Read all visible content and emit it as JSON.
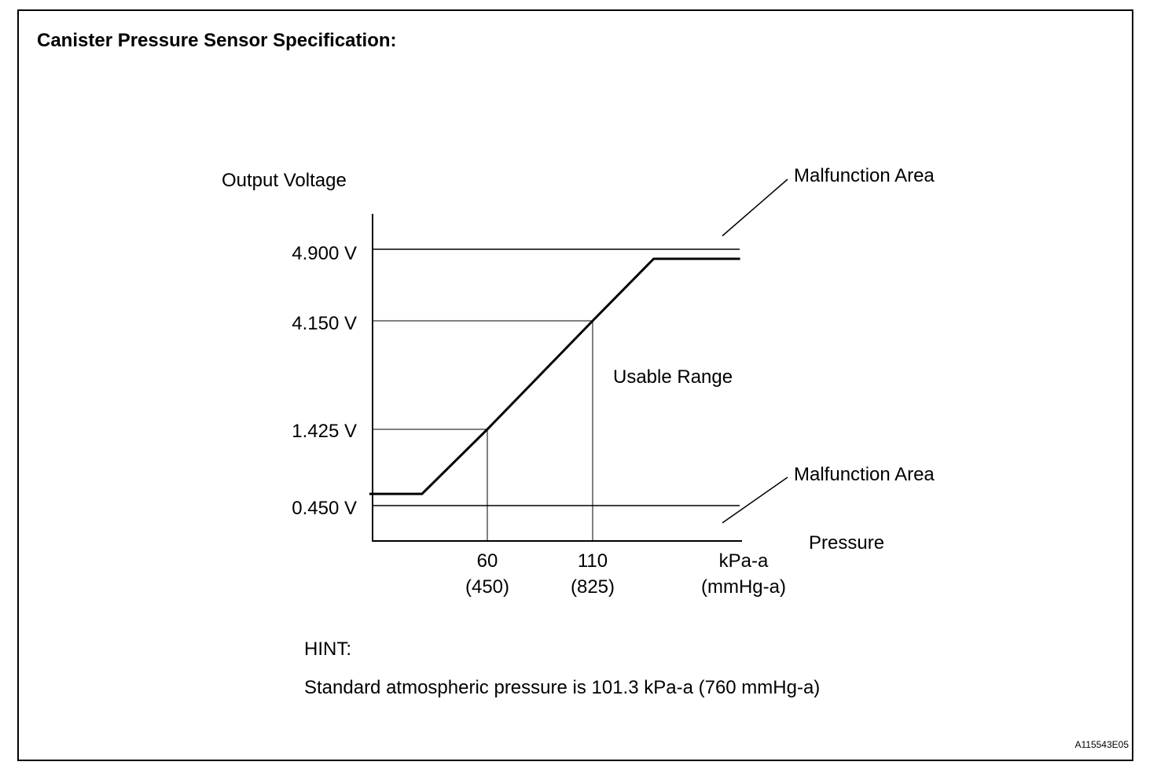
{
  "header": {
    "title": "Canister Pressure Sensor Specification:"
  },
  "chart_data": {
    "type": "line",
    "ylabel": "Output Voltage",
    "xlabel": "Pressure",
    "x_unit": [
      "kPa-a",
      "(mmHg-a)"
    ],
    "y_ticks": [
      "4.900 V",
      "4.150 V",
      "1.425 V",
      "0.450 V"
    ],
    "x_ticks": [
      {
        "kpa": "60",
        "mmhg": "(450)"
      },
      {
        "kpa": "110",
        "mmhg": "(825)"
      }
    ],
    "series": [
      {
        "values": [
          {
            "x": 4,
            "y": 0.6
          },
          {
            "x": 29,
            "y": 0.6
          },
          {
            "x": 60,
            "y": 1.425
          },
          {
            "x": 110,
            "y": 4.15
          },
          {
            "x": 139,
            "y": 4.8
          },
          {
            "x": 180,
            "y": 4.8
          }
        ]
      }
    ],
    "annotations": {
      "malfunction_upper": "Malfunction Area",
      "usable": "Usable Range",
      "malfunction_lower": "Malfunction Area"
    }
  },
  "hint": {
    "label": "HINT:",
    "text": "Standard atmospheric pressure is 101.3 kPa-a (760 mmHg-a)"
  },
  "figure_code": "A115543E05"
}
